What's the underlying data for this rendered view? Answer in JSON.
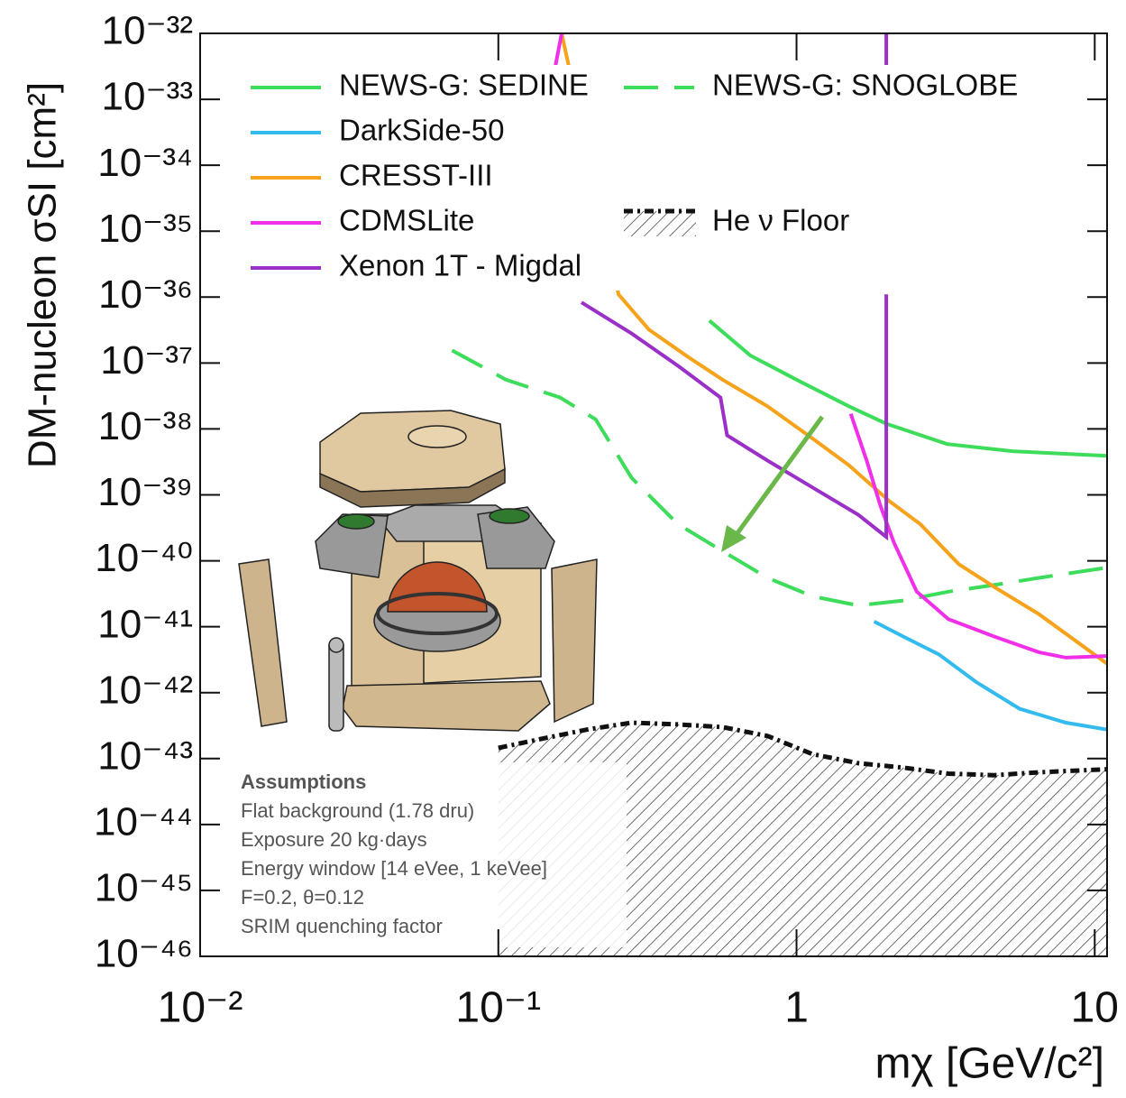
{
  "chart_data": {
    "type": "line",
    "x_title": "mχ [GeV/c²]",
    "y_title": "DM-nucleon σSI [cm²]",
    "xlog": true,
    "ylog": true,
    "xlim": [
      0.01,
      11
    ],
    "ylim": [
      1e-46,
      1e-32
    ],
    "xticks": [
      {
        "value": 0.01,
        "label": "10⁻²"
      },
      {
        "value": 0.1,
        "label": "10⁻¹"
      },
      1,
      10
    ],
    "yticks": [
      {
        "value": 1e-46,
        "label": "10⁻⁴⁶"
      },
      {
        "value": 1e-45,
        "label": "10⁻⁴⁵"
      },
      {
        "value": 1e-44,
        "label": "10⁻⁴⁴"
      },
      {
        "value": 1e-43,
        "label": "10⁻⁴³"
      },
      {
        "value": 1e-42,
        "label": "10⁻⁴²"
      },
      {
        "value": 1e-41,
        "label": "10⁻⁴¹"
      },
      {
        "value": 1e-40,
        "label": "10⁻⁴⁰"
      },
      {
        "value": 1e-39,
        "label": "10⁻³⁹"
      },
      {
        "value": 1e-38,
        "label": "10⁻³⁸"
      },
      {
        "value": 1e-37,
        "label": "10⁻³⁷"
      },
      {
        "value": 1e-36,
        "label": "10⁻³⁶"
      },
      {
        "value": 1e-35,
        "label": "10⁻³⁵"
      },
      {
        "value": 1e-34,
        "label": "10⁻³⁴"
      },
      {
        "value": 1e-33,
        "label": "10⁻³³"
      },
      {
        "value": 1e-32,
        "label": "10⁻³²"
      }
    ],
    "legend": "top",
    "series": [
      {
        "name": "NEWS-G: SEDINE",
        "color": "#3ddc5a",
        "style": "solid",
        "x": [
          0.51,
          0.7,
          1,
          1.5,
          2,
          3.2,
          5.3,
          11
        ],
        "values": [
          4.4e-37,
          1.3e-37,
          5.6e-38,
          2.2e-38,
          1.2e-38,
          5.9e-39,
          4.6e-39,
          3.9e-39
        ]
      },
      {
        "name": "NEWS-G: SNOGLOBE",
        "color": "#3ddc5a",
        "style": "dashed",
        "x": [
          0.07,
          0.106,
          0.161,
          0.212,
          0.28,
          0.4,
          0.565,
          0.8,
          1.13,
          1.61,
          2.28,
          3.23,
          4.6,
          6.5,
          11
        ],
        "values": [
          1.55e-37,
          5.6e-38,
          3e-38,
          1.4e-38,
          1.8e-39,
          3.6e-40,
          1.4e-40,
          5.5e-41,
          2.9e-41,
          2.1e-41,
          2.5e-41,
          3.4e-41,
          4.3e-41,
          5.5e-41,
          7.9e-41
        ]
      },
      {
        "name": "DarkSide-50",
        "color": "#33bbee",
        "style": "solid",
        "x": [
          1.82,
          2.28,
          3,
          4,
          5.6,
          8,
          11
        ],
        "values": [
          1.2e-41,
          7.1e-42,
          3.8e-42,
          1.45e-42,
          5.7e-43,
          3.5e-43,
          2.75e-43
        ]
      },
      {
        "name": "CRESST-III",
        "color": "#f7a21b",
        "style": "solid",
        "x": [
          0.163,
          0.253,
          0.32,
          0.43,
          0.565,
          0.8,
          1.13,
          1.5,
          2.05,
          2.6,
          3.5,
          4.6,
          6.5,
          11
        ],
        "values": [
          1e-32,
          1.1e-36,
          3.2e-37,
          1.26e-37,
          5.6e-38,
          2.2e-38,
          7.2e-39,
          2.8e-39,
          8e-40,
          3.6e-40,
          8.9e-41,
          4e-41,
          1.55e-41,
          2.75e-42
        ]
      },
      {
        "name": "CDMSLite",
        "color": "#f030e8",
        "style": "solid",
        "x": [
          0.155,
          0.163,
          1.52,
          1.52,
          1.72,
          1.91,
          2.12,
          2.53,
          3.23,
          4.6,
          6.5,
          8,
          11
        ],
        "values": [
          3e-33,
          1e-32,
          null,
          1.7e-38,
          3.3e-39,
          6.9e-40,
          1.9e-40,
          3.4e-41,
          1.3e-41,
          7.1e-42,
          4.1e-42,
          3.4e-42,
          3.6e-42
        ]
      },
      {
        "name": "Xenon 1T - Migdal",
        "color": "#9b30c8",
        "style": "solid",
        "x": [
          2,
          2,
          2,
          0.19,
          0.28,
          0.4,
          0.556,
          0.585,
          0.8,
          1.13,
          1.61,
          2,
          2
        ],
        "values": [
          1e-32,
          3e-33,
          null,
          8.3e-37,
          2.8e-37,
          9.1e-38,
          3e-38,
          8e-39,
          3.3e-39,
          1.3e-39,
          5e-40,
          2.3e-40,
          1.1e-36
        ]
      },
      {
        "name": "He ν Floor",
        "color": "#111111",
        "style": "dashdot",
        "hatch": true,
        "x": [
          0.1,
          0.14,
          0.198,
          0.28,
          0.4,
          0.565,
          0.8,
          1.13,
          1.61,
          2.28,
          3.23,
          4.6,
          6.5,
          11
        ],
        "values": [
          1.45e-43,
          2e-43,
          2.75e-43,
          3.5e-43,
          3.3e-43,
          3e-43,
          2.2e-43,
          1.17e-43,
          8.5e-44,
          7.3e-44,
          5.9e-44,
          5.6e-44,
          6.2e-44,
          6.9e-44
        ]
      }
    ],
    "assumptions": {
      "title": "Assumptions",
      "lines": [
        "Flat background (1.78 dru)",
        "Exposure 20 kg·days",
        "Energy window [14 eVee, 1 keVee]",
        "F=0.2, θ=0.12",
        "SRIM quenching factor"
      ]
    }
  }
}
